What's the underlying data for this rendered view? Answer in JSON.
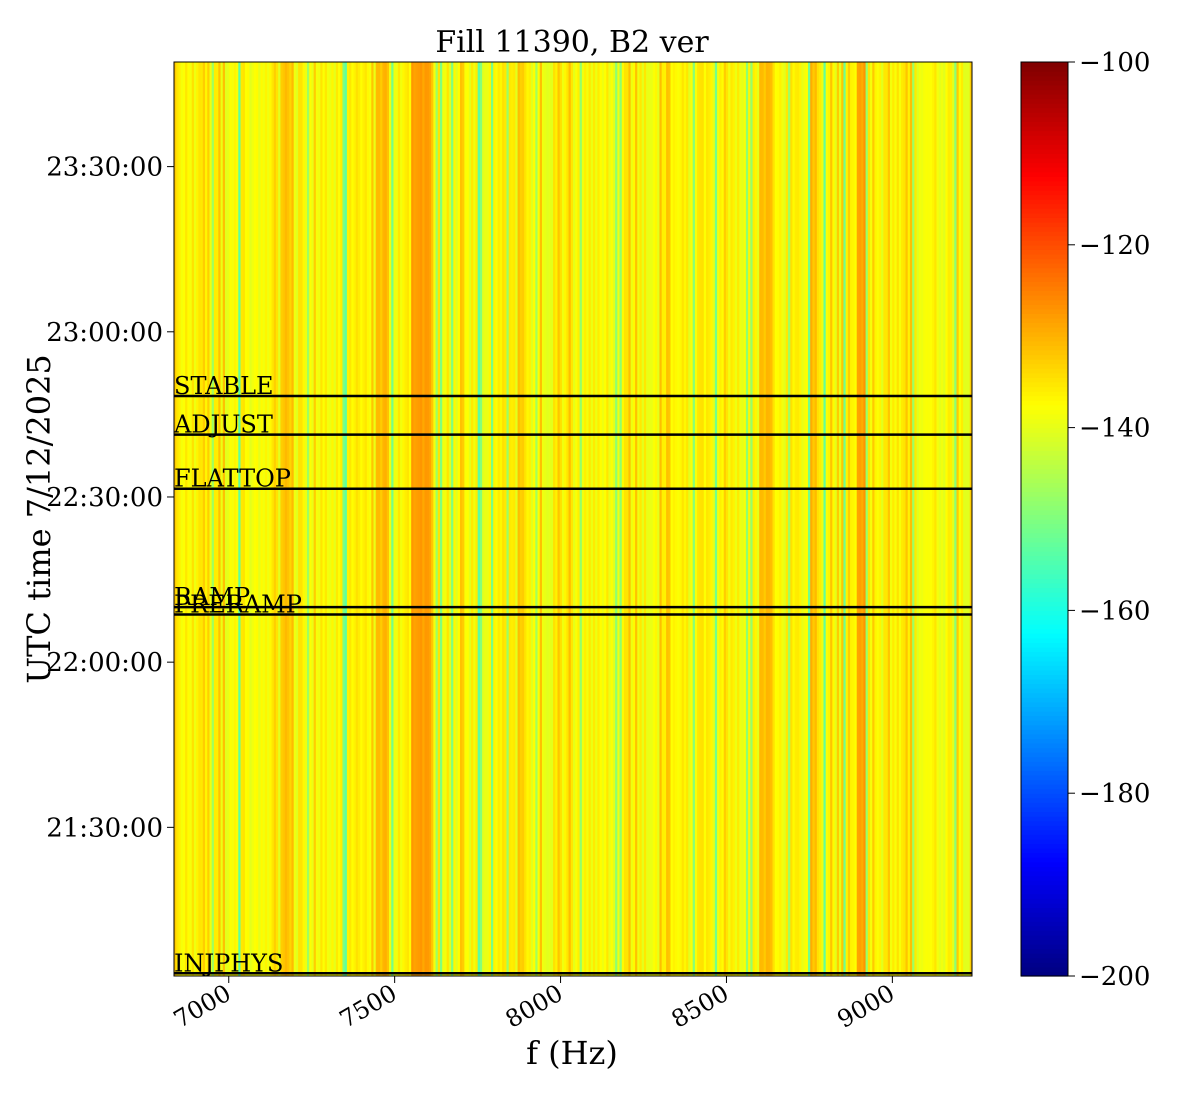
{
  "chart_data": {
    "type": "heatmap",
    "title": "Fill 11390, B2 ver",
    "xlabel": "f (Hz)",
    "ylabel": "UTC time 7/12/2025",
    "xlim": [
      6835,
      9240
    ],
    "ylim": [
      "21:03:00",
      "23:49:00"
    ],
    "x_ticks": [
      7000,
      7500,
      8000,
      8500,
      9000
    ],
    "x_tick_labels": [
      "7000",
      "7500",
      "8000",
      "8500",
      "9000"
    ],
    "y_ticks": [
      "21:30:00",
      "22:00:00",
      "22:30:00",
      "23:00:00",
      "23:30:00"
    ],
    "y_tick_labels": [
      "21:30:00",
      "22:00:00",
      "22:30:00",
      "23:00:00",
      "23:30:00"
    ],
    "colorbar": {
      "colormap": "jet",
      "range": [
        -200,
        -100
      ],
      "ticks": [
        -200,
        -180,
        -160,
        -140,
        -120,
        -100
      ],
      "tick_labels": [
        "−200",
        "−180",
        "−160",
        "−140",
        "−120",
        "−100"
      ]
    },
    "value_range_observed": [
      -156,
      -125
    ],
    "note_pattern": "values vary with frequency only (vertical stripes); constant over time",
    "annotations": [
      {
        "label": "INJPHYS",
        "time": "21:03:30"
      },
      {
        "label": "PRERAMP",
        "time": "22:08:40"
      },
      {
        "label": "RAMP",
        "time": "22:10:00"
      },
      {
        "label": "FLATTOP",
        "time": "22:31:30"
      },
      {
        "label": "ADJUST",
        "time": "22:41:20"
      },
      {
        "label": "STABLE",
        "time": "22:48:20"
      }
    ]
  }
}
